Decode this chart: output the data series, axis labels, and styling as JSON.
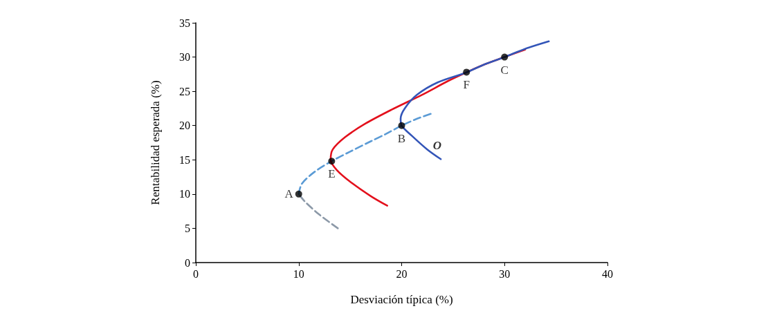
{
  "chart_data": {
    "type": "line",
    "xlabel": "Desviación típica (%)",
    "ylabel": "Rentabilidad esperada (%)",
    "xlim": [
      0,
      40
    ],
    "xticks": [
      0,
      10,
      20,
      30,
      40
    ],
    "ylim": [
      0,
      35
    ],
    "yticks": [
      0,
      5,
      10,
      15,
      20,
      25,
      30,
      35
    ],
    "grid": false,
    "series": [
      {
        "color": "#8c99a8",
        "line_style": "dashed",
        "marker": "none",
        "x": [
          13.8,
          12,
          10.6,
          10
        ],
        "values": [
          5,
          7,
          8.9,
          10
        ]
      },
      {
        "color": "#5b9bd5",
        "line_style": "dashed",
        "marker": "none",
        "x": [
          10,
          10.3,
          11.5,
          13.2,
          15,
          17,
          18.5,
          20,
          21.5,
          23
        ],
        "values": [
          10,
          11.5,
          13.2,
          14.8,
          16.2,
          17.7,
          18.8,
          20,
          21,
          21.8
        ]
      },
      {
        "color": "#e3101c",
        "line_style": "solid",
        "marker": "none",
        "x": [
          18.6,
          17,
          15,
          13.7,
          13.1,
          13.3,
          14.5,
          16.5,
          19,
          22,
          24.5,
          26.2,
          28,
          30,
          32
        ],
        "values": [
          8.3,
          9.7,
          11.8,
          13.5,
          15,
          16.5,
          18.3,
          20.3,
          22.3,
          24.5,
          26.5,
          27.7,
          28.9,
          30,
          31.1
        ]
      },
      {
        "color": "#3355b8",
        "line_style": "solid",
        "marker": "none",
        "x": [
          23.8,
          22.5,
          21,
          20,
          19.9,
          20.3,
          21.5,
          23.5,
          26.2,
          28,
          30,
          32,
          34.3
        ],
        "values": [
          15.1,
          16.5,
          18.5,
          20,
          21,
          22.5,
          24.5,
          26.3,
          27.7,
          28.9,
          30,
          31.2,
          32.3
        ]
      },
      {
        "type": "scatter",
        "color": "#000000",
        "marker": "circle",
        "x": [
          10,
          13.2,
          20,
          26.3,
          30
        ],
        "values": [
          10,
          14.8,
          20,
          27.8,
          30
        ]
      }
    ],
    "annotations": [
      {
        "text": "A",
        "x": 10,
        "y": 10
      },
      {
        "text": "E",
        "x": 13.2,
        "y": 14.8
      },
      {
        "text": "B",
        "x": 20,
        "y": 20
      },
      {
        "text": "F",
        "x": 26.3,
        "y": 27.8
      },
      {
        "text": "C",
        "x": 30,
        "y": 30
      },
      {
        "text": "O",
        "x": 22.1,
        "y": 17.1
      }
    ]
  }
}
